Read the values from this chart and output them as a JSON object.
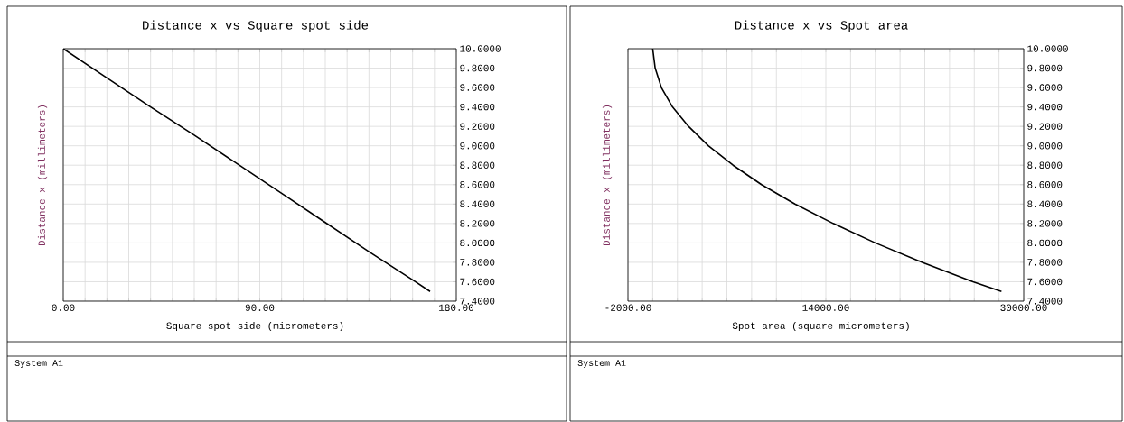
{
  "chart_data": [
    {
      "type": "line",
      "title": "Distance x vs Square spot side",
      "xlabel": "Square spot side (micrometers)",
      "ylabel": "Distance x (millimeters)",
      "x": [
        0,
        20,
        40,
        60,
        80,
        100,
        120,
        140,
        160,
        168
      ],
      "values": [
        10.0,
        9.7,
        9.4,
        9.11,
        8.81,
        8.51,
        8.21,
        7.91,
        7.62,
        7.5
      ],
      "color": "#000000",
      "grid": true,
      "xlim": [
        0,
        180
      ],
      "xticks": [
        {
          "value": 0,
          "label": "0.00"
        },
        {
          "value": 10,
          "label": null
        },
        {
          "value": 20,
          "label": null
        },
        {
          "value": 30,
          "label": null
        },
        {
          "value": 40,
          "label": null
        },
        {
          "value": 50,
          "label": null
        },
        {
          "value": 60,
          "label": null
        },
        {
          "value": 70,
          "label": null
        },
        {
          "value": 80,
          "label": null
        },
        {
          "value": 90,
          "label": "90.00"
        },
        {
          "value": 100,
          "label": null
        },
        {
          "value": 110,
          "label": null
        },
        {
          "value": 120,
          "label": null
        },
        {
          "value": 130,
          "label": null
        },
        {
          "value": 140,
          "label": null
        },
        {
          "value": 150,
          "label": null
        },
        {
          "value": 160,
          "label": null
        },
        {
          "value": 170,
          "label": null
        },
        {
          "value": 180,
          "label": "180.00"
        }
      ],
      "ylim": [
        7.4,
        10.0
      ],
      "yticks": [
        {
          "value": 7.4,
          "label": "7.4000"
        },
        {
          "value": 7.6,
          "label": "7.6000"
        },
        {
          "value": 7.8,
          "label": "7.8000"
        },
        {
          "value": 8.0,
          "label": "8.0000"
        },
        {
          "value": 8.2,
          "label": "8.2000"
        },
        {
          "value": 8.4,
          "label": "8.4000"
        },
        {
          "value": 8.6,
          "label": "8.6000"
        },
        {
          "value": 8.8,
          "label": "8.8000"
        },
        {
          "value": 9.0,
          "label": "9.0000"
        },
        {
          "value": 9.2,
          "label": "9.2000"
        },
        {
          "value": 9.4,
          "label": "9.4000"
        },
        {
          "value": 9.6,
          "label": "9.6000"
        },
        {
          "value": 9.8,
          "label": "9.8000"
        },
        {
          "value": 10.0,
          "label": "10.0000"
        }
      ],
      "annotations": [
        "System A1"
      ]
    },
    {
      "type": "line",
      "title": "Distance x vs Spot area",
      "xlabel": "Spot area (square micrometers)",
      "ylabel": "Distance x (millimeters)",
      "x": [
        0,
        200,
        700,
        1600,
        2900,
        4500,
        6500,
        8800,
        11500,
        14600,
        18000,
        21800,
        25900,
        28200
      ],
      "values": [
        10.0,
        9.8,
        9.6,
        9.4,
        9.2,
        9.0,
        8.8,
        8.6,
        8.4,
        8.2,
        8.0,
        7.8,
        7.6,
        7.5
      ],
      "color": "#000000",
      "grid": true,
      "xlim": [
        -2000,
        30000
      ],
      "xticks": [
        {
          "value": -2000,
          "label": "-2000.00"
        },
        {
          "value": 0,
          "label": null
        },
        {
          "value": 2000,
          "label": null
        },
        {
          "value": 4000,
          "label": null
        },
        {
          "value": 6000,
          "label": null
        },
        {
          "value": 8000,
          "label": null
        },
        {
          "value": 10000,
          "label": null
        },
        {
          "value": 12000,
          "label": null
        },
        {
          "value": 14000,
          "label": "14000.00"
        },
        {
          "value": 16000,
          "label": null
        },
        {
          "value": 18000,
          "label": null
        },
        {
          "value": 20000,
          "label": null
        },
        {
          "value": 22000,
          "label": null
        },
        {
          "value": 24000,
          "label": null
        },
        {
          "value": 26000,
          "label": null
        },
        {
          "value": 28000,
          "label": null
        },
        {
          "value": 30000,
          "label": "30000.00"
        }
      ],
      "ylim": [
        7.4,
        10.0
      ],
      "yticks": [
        {
          "value": 7.4,
          "label": "7.4000"
        },
        {
          "value": 7.6,
          "label": "7.6000"
        },
        {
          "value": 7.8,
          "label": "7.8000"
        },
        {
          "value": 8.0,
          "label": "8.0000"
        },
        {
          "value": 8.2,
          "label": "8.2000"
        },
        {
          "value": 8.4,
          "label": "8.4000"
        },
        {
          "value": 8.6,
          "label": "8.6000"
        },
        {
          "value": 8.8,
          "label": "8.8000"
        },
        {
          "value": 9.0,
          "label": "9.0000"
        },
        {
          "value": 9.2,
          "label": "9.2000"
        },
        {
          "value": 9.4,
          "label": "9.4000"
        },
        {
          "value": 9.6,
          "label": "9.6000"
        },
        {
          "value": 9.8,
          "label": "9.8000"
        },
        {
          "value": 10.0,
          "label": "10.0000"
        }
      ],
      "annotations": [
        "System A1"
      ]
    }
  ]
}
